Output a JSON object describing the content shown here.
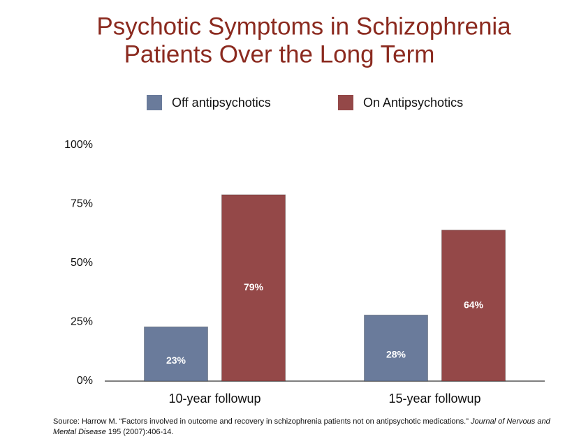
{
  "chart_data": {
    "type": "bar",
    "title": [
      "Psychotic Symptoms in Schizophrenia",
      "Patients  Over the Long Term"
    ],
    "categories": [
      "10-year followup",
      "15-year followup"
    ],
    "series": [
      {
        "name": "Off antipsychotics",
        "color": "#6a7b9b",
        "values": [
          23,
          28
        ],
        "value_labels": [
          "23%",
          "28%"
        ]
      },
      {
        "name": "On Antipsychotics",
        "color": "#944848",
        "values": [
          79,
          64
        ],
        "value_labels": [
          "79%",
          "64%"
        ]
      }
    ],
    "ylim": [
      0,
      100
    ],
    "yticks": [
      {
        "value": 0,
        "label": "0%"
      },
      {
        "value": 25,
        "label": "25%"
      },
      {
        "value": 50,
        "label": "50%"
      },
      {
        "value": 75,
        "label": "75%"
      },
      {
        "value": 100,
        "label": "100%"
      }
    ],
    "grid": false,
    "legend": "top",
    "source": {
      "text": "Source: Harrow M. “Factors involved in outcome and recovery in schizophrenia patients not on antipsychotic medications.”",
      "journal": "Journal of Nervous and Mental Disease",
      "rest": "195 (2007):406-14."
    }
  }
}
